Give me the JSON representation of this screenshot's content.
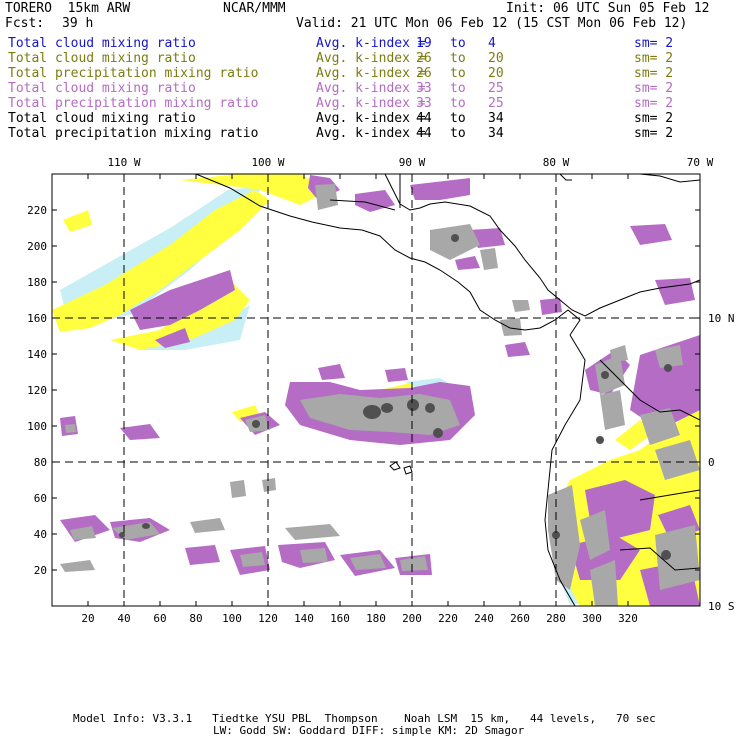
{
  "header": {
    "model": "TORERO  15km ARW",
    "org": "NCAR/MMM",
    "init": "Init: 06 UTC Sun 05 Feb 12",
    "fcst_label": "Fcst:",
    "fcst_value": "39 h",
    "valid": "Valid: 21 UTC Mon 06 Feb 12 (15 CST Mon 06 Feb 12)"
  },
  "legend": [
    {
      "field": "Total cloud mixing ratio",
      "stat": "Avg. k-index =",
      "k1": "19",
      "to": "to",
      "k2": "4",
      "sm": "sm= 2",
      "color": "#1515c8"
    },
    {
      "field": "Total cloud mixing ratio",
      "stat": "Avg. k-index =",
      "k1": "26",
      "to": "to",
      "k2": "20",
      "sm": "sm= 2",
      "color": "#7c7c10"
    },
    {
      "field": "Total precipitation mixing ratio",
      "stat": "Avg. k-index =",
      "k1": "26",
      "to": "to",
      "k2": "20",
      "sm": "sm= 2",
      "color": "#7c7c10"
    },
    {
      "field": "Total cloud mixing ratio",
      "stat": "Avg. k-index =",
      "k1": "33",
      "to": "to",
      "k2": "25",
      "sm": "sm= 2",
      "color": "#b46cc4"
    },
    {
      "field": "Total precipitation mixing ratio",
      "stat": "Avg. k-index =",
      "k1": "33",
      "to": "to",
      "k2": "25",
      "sm": "sm= 2",
      "color": "#b46cc4"
    },
    {
      "field": "Total cloud mixing ratio",
      "stat": "Avg. k-index =",
      "k1": "44",
      "to": "to",
      "k2": "34",
      "sm": "sm= 2",
      "color": "#000000"
    },
    {
      "field": "Total precipitation mixing ratio",
      "stat": "Avg. k-index =",
      "k1": "44",
      "to": "to",
      "k2": "34",
      "sm": "sm= 2",
      "color": "#000000"
    }
  ],
  "map": {
    "top_longitude_labels": [
      "110 W",
      "100 W",
      "90 W",
      "80 W",
      "70 W"
    ],
    "right_latitude_labels": [
      "10 N",
      "0",
      "10 S"
    ],
    "left_grid_labels": [
      "220",
      "200",
      "180",
      "160",
      "140",
      "120",
      "100",
      "80",
      "60",
      "40",
      "20"
    ],
    "bottom_grid_labels": [
      "20",
      "40",
      "60",
      "80",
      "100",
      "120",
      "140",
      "160",
      "180",
      "200",
      "220",
      "240",
      "260",
      "280",
      "300",
      "320"
    ],
    "colors": {
      "cloud_light": "#c8eef6",
      "yellow": "#ffff40",
      "purple": "#b46cc4",
      "gray": "#a8a8a8",
      "dark_gray": "#505050",
      "coast": "#000000"
    }
  },
  "footer": {
    "line1": "Model Info: V3.3.1   Tiedtke YSU PBL  Thompson    Noah LSM  15 km,   44 levels,   70 sec",
    "line2": "LW: Godd SW: Goddard DIFF: simple KM: 2D Smagor"
  }
}
